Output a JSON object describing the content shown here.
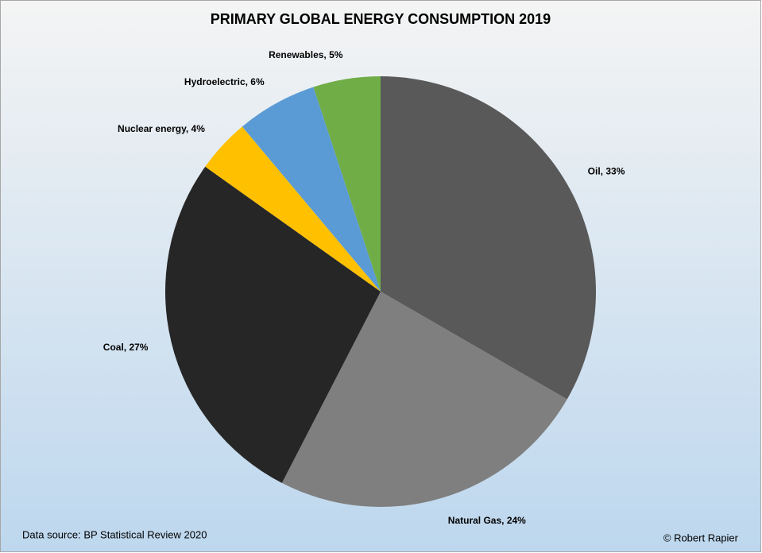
{
  "chart_data": {
    "type": "pie",
    "title": "PRIMARY GLOBAL ENERGY CONSUMPTION 2019",
    "values": [
      33,
      24,
      27,
      4,
      6,
      5
    ],
    "value_labels": [
      "Oil, 33%",
      "Natural Gas, 24%",
      "Coal, 27%",
      "Nuclear energy, 4%",
      "Hydroelectric, 6%",
      "Renewables, 5%"
    ],
    "colors": [
      "#595959",
      "#7f7f7f",
      "#262626",
      "#ffc000",
      "#5b9bd5",
      "#70ad47"
    ],
    "source": "Data source: BP Statistical Review 2020",
    "credit": "© Robert Rapier"
  }
}
